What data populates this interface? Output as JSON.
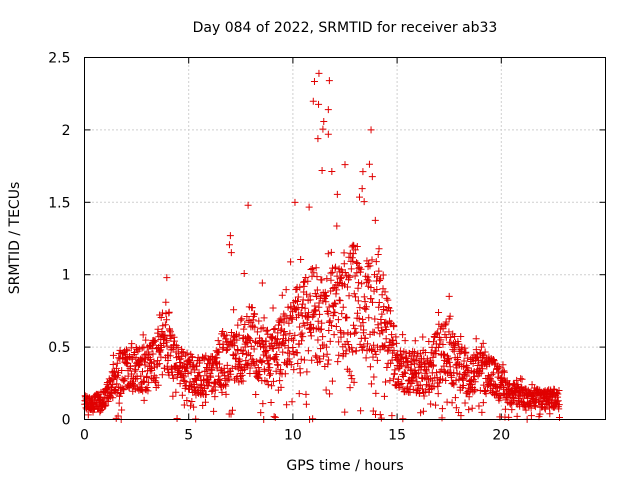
{
  "chart_data": {
    "type": "scatter",
    "title": "Day 084 of 2022, SRMTID for receiver ab33",
    "xlabel": "GPS time / hours",
    "ylabel": "SRMTID / TECUs",
    "xlim": [
      0,
      25
    ],
    "ylim": [
      0,
      2.5
    ],
    "xticks": [
      "0",
      "5",
      "10",
      "15",
      "20"
    ],
    "yticks": [
      "0",
      "0.5",
      "1",
      "1.5",
      "2",
      "2.5"
    ],
    "marker": "+",
    "color": "#e00000",
    "grid": true,
    "envelope": {
      "hours": [
        0,
        0.5,
        1,
        1.5,
        2,
        2.5,
        3,
        3.5,
        3.9,
        4.2,
        4.5,
        5,
        5.5,
        6,
        6.5,
        7,
        7.5,
        8,
        8.5,
        9,
        9.5,
        10,
        10.5,
        11,
        11.5,
        12,
        12.5,
        13,
        13.5,
        14,
        14.5,
        15,
        15.5,
        16,
        16.5,
        17,
        17.5,
        18,
        18.5,
        19,
        19.5,
        20,
        20.5,
        21,
        21.5,
        22,
        22.8
      ],
      "typical": [
        0.12,
        0.12,
        0.15,
        0.3,
        0.35,
        0.35,
        0.35,
        0.4,
        0.6,
        0.45,
        0.38,
        0.32,
        0.3,
        0.32,
        0.4,
        0.42,
        0.48,
        0.55,
        0.45,
        0.42,
        0.5,
        0.6,
        0.7,
        0.75,
        0.65,
        0.75,
        0.8,
        0.85,
        0.78,
        0.75,
        0.6,
        0.38,
        0.33,
        0.32,
        0.33,
        0.45,
        0.48,
        0.35,
        0.33,
        0.35,
        0.3,
        0.25,
        0.18,
        0.16,
        0.15,
        0.14,
        0.15
      ],
      "maximum": [
        0.2,
        0.2,
        0.3,
        0.55,
        0.55,
        0.6,
        0.65,
        0.7,
        0.98,
        0.6,
        0.5,
        0.45,
        0.45,
        0.5,
        0.7,
        1.27,
        0.8,
        1.48,
        1.1,
        0.8,
        1.0,
        1.57,
        1.3,
        2.39,
        2.14,
        1.77,
        1.5,
        1.37,
        2.0,
        1.5,
        0.85,
        0.62,
        0.6,
        0.6,
        0.55,
        0.75,
        0.85,
        0.6,
        0.55,
        0.6,
        0.45,
        0.4,
        0.35,
        0.3,
        0.25,
        0.22,
        0.22
      ]
    },
    "notable_points": [
      {
        "x": 11.25,
        "y": 2.39
      },
      {
        "x": 11.75,
        "y": 2.34
      },
      {
        "x": 11.7,
        "y": 2.14
      },
      {
        "x": 13.75,
        "y": 2.0
      },
      {
        "x": 11.2,
        "y": 1.94
      },
      {
        "x": 11.7,
        "y": 1.97
      },
      {
        "x": 12.5,
        "y": 1.76
      },
      {
        "x": 7.85,
        "y": 1.48
      },
      {
        "x": 3.95,
        "y": 0.98
      },
      {
        "x": 7.0,
        "y": 1.27
      },
      {
        "x": 17.5,
        "y": 0.85
      },
      {
        "x": 8.6,
        "y": 0.0
      },
      {
        "x": 9.1,
        "y": 0.02
      },
      {
        "x": 10.8,
        "y": 0.0
      }
    ]
  }
}
